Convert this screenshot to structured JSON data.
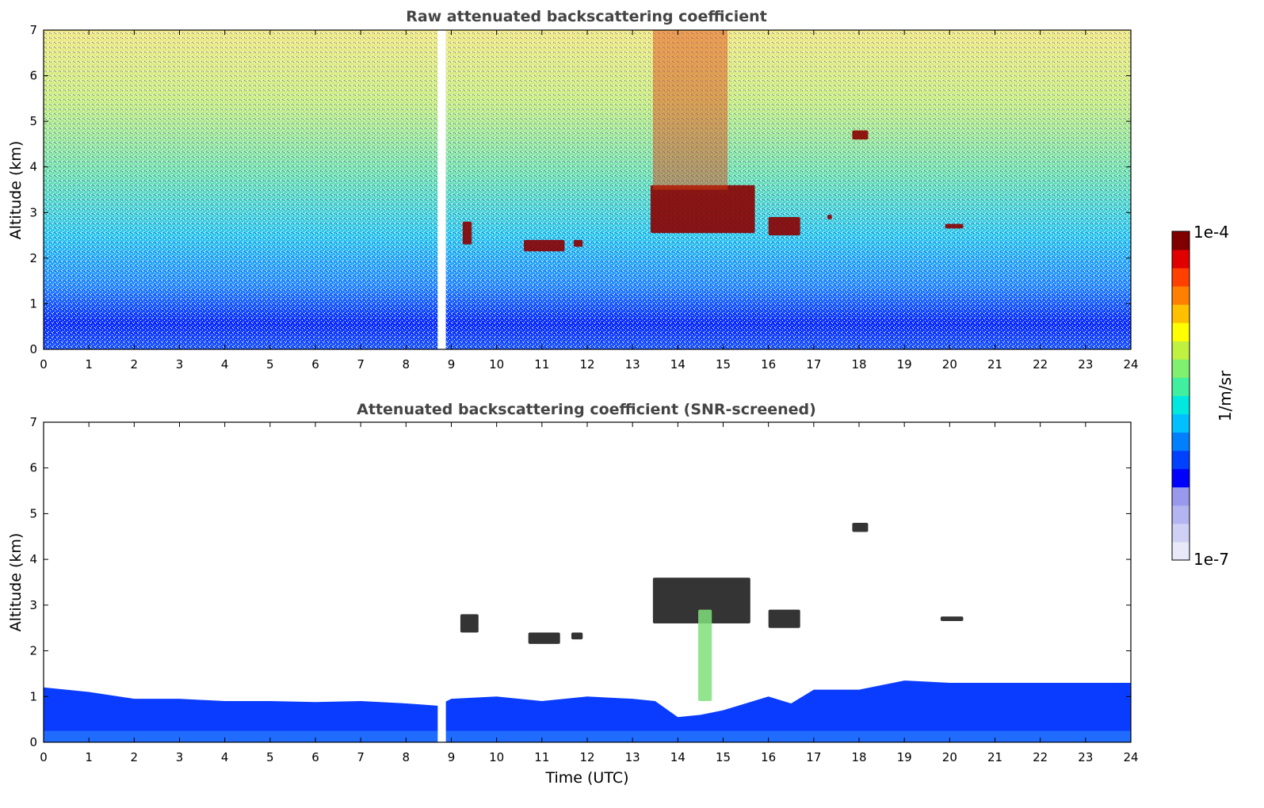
{
  "chart_data": [
    {
      "type": "heatmap",
      "title": "Raw attenuated backscattering coefficient",
      "xlabel": "",
      "ylabel": "Altitude (km)",
      "xlim": [
        0,
        24
      ],
      "ylim": [
        0,
        7
      ],
      "xticks": [
        "0",
        "1",
        "2",
        "3",
        "4",
        "5",
        "6",
        "7",
        "8",
        "9",
        "10",
        "11",
        "12",
        "13",
        "14",
        "15",
        "16",
        "17",
        "18",
        "19",
        "20",
        "21",
        "22",
        "23",
        "24"
      ],
      "yticks": [
        "0",
        "1",
        "2",
        "3",
        "4",
        "5",
        "6",
        "7"
      ],
      "data_gap_utc": [
        8.7,
        8.88
      ],
      "features": [
        {
          "kind": "cloud",
          "t": [
            9.25,
            9.45
          ],
          "alt": [
            2.3,
            2.8
          ]
        },
        {
          "kind": "cloud",
          "t": [
            10.6,
            11.5
          ],
          "alt": [
            2.15,
            2.4
          ]
        },
        {
          "kind": "cloud",
          "t": [
            11.7,
            11.9
          ],
          "alt": [
            2.25,
            2.4
          ]
        },
        {
          "kind": "cloud",
          "t": [
            13.4,
            15.7
          ],
          "alt": [
            2.55,
            3.6
          ]
        },
        {
          "kind": "cloud",
          "t": [
            16.0,
            16.7
          ],
          "alt": [
            2.5,
            2.9
          ]
        },
        {
          "kind": "cloud",
          "t": [
            17.3,
            17.4
          ],
          "alt": [
            2.85,
            2.95
          ]
        },
        {
          "kind": "cloud",
          "t": [
            17.85,
            18.2
          ],
          "alt": [
            4.6,
            4.8
          ]
        },
        {
          "kind": "cloud",
          "t": [
            19.9,
            20.3
          ],
          "alt": [
            2.65,
            2.75
          ]
        },
        {
          "kind": "high-backscatter region",
          "t": [
            13.45,
            15.1
          ],
          "alt": [
            3.5,
            7.0
          ]
        }
      ]
    },
    {
      "type": "heatmap",
      "title": "Attenuated backscattering coefficient (SNR-screened)",
      "xlabel": "Time (UTC)",
      "ylabel": "Altitude (km)",
      "xlim": [
        0,
        24
      ],
      "ylim": [
        0,
        7
      ],
      "xticks": [
        "0",
        "1",
        "2",
        "3",
        "4",
        "5",
        "6",
        "7",
        "8",
        "9",
        "10",
        "11",
        "12",
        "13",
        "14",
        "15",
        "16",
        "17",
        "18",
        "19",
        "20",
        "21",
        "22",
        "23",
        "24"
      ],
      "yticks": [
        "0",
        "1",
        "2",
        "3",
        "4",
        "5",
        "6",
        "7"
      ],
      "data_gap_utc": [
        8.7,
        8.88
      ],
      "boundary_layer_top_km": [
        [
          0,
          1.2
        ],
        [
          1,
          1.1
        ],
        [
          2,
          0.95
        ],
        [
          3,
          0.95
        ],
        [
          4,
          0.9
        ],
        [
          5,
          0.9
        ],
        [
          6,
          0.88
        ],
        [
          7,
          0.9
        ],
        [
          8,
          0.85
        ],
        [
          8.7,
          0.8
        ],
        [
          9,
          0.95
        ],
        [
          10,
          1.0
        ],
        [
          11,
          0.9
        ],
        [
          12,
          1.0
        ],
        [
          13,
          0.95
        ],
        [
          13.5,
          0.9
        ],
        [
          14,
          0.55
        ],
        [
          14.5,
          0.6
        ],
        [
          15,
          0.7
        ],
        [
          16,
          1.0
        ],
        [
          16.5,
          0.85
        ],
        [
          17,
          1.15
        ],
        [
          18,
          1.15
        ],
        [
          19,
          1.35
        ],
        [
          20,
          1.3
        ],
        [
          21,
          1.3
        ],
        [
          22,
          1.3
        ],
        [
          23,
          1.3
        ],
        [
          24,
          1.3
        ]
      ],
      "features": [
        {
          "kind": "cloud",
          "t": [
            9.2,
            9.6
          ],
          "alt": [
            2.4,
            2.8
          ]
        },
        {
          "kind": "cloud",
          "t": [
            10.7,
            11.4
          ],
          "alt": [
            2.15,
            2.4
          ]
        },
        {
          "kind": "cloud",
          "t": [
            11.65,
            11.9
          ],
          "alt": [
            2.25,
            2.4
          ]
        },
        {
          "kind": "cloud",
          "t": [
            13.45,
            15.6
          ],
          "alt": [
            2.6,
            3.6
          ]
        },
        {
          "kind": "cloud",
          "t": [
            16.0,
            16.7
          ],
          "alt": [
            2.5,
            2.9
          ]
        },
        {
          "kind": "cloud",
          "t": [
            17.85,
            18.2
          ],
          "alt": [
            4.6,
            4.8
          ]
        },
        {
          "kind": "cloud",
          "t": [
            19.8,
            20.3
          ],
          "alt": [
            2.65,
            2.75
          ]
        },
        {
          "kind": "plume",
          "t": [
            14.45,
            14.75
          ],
          "alt": [
            0.9,
            2.9
          ]
        }
      ]
    }
  ],
  "colorbar": {
    "max_label": "1e-4",
    "min_label": "1e-7",
    "unit_label": "1/m/sr",
    "colors": [
      "#e8e8f8",
      "#d0d0f4",
      "#b4b4f0",
      "#9898ec",
      "#0000ff",
      "#0040ff",
      "#0080ff",
      "#00c0ff",
      "#00e8e0",
      "#40f0a0",
      "#80f070",
      "#c0f040",
      "#ffff00",
      "#ffc000",
      "#ff8000",
      "#ff4000",
      "#e00000",
      "#800000"
    ]
  }
}
